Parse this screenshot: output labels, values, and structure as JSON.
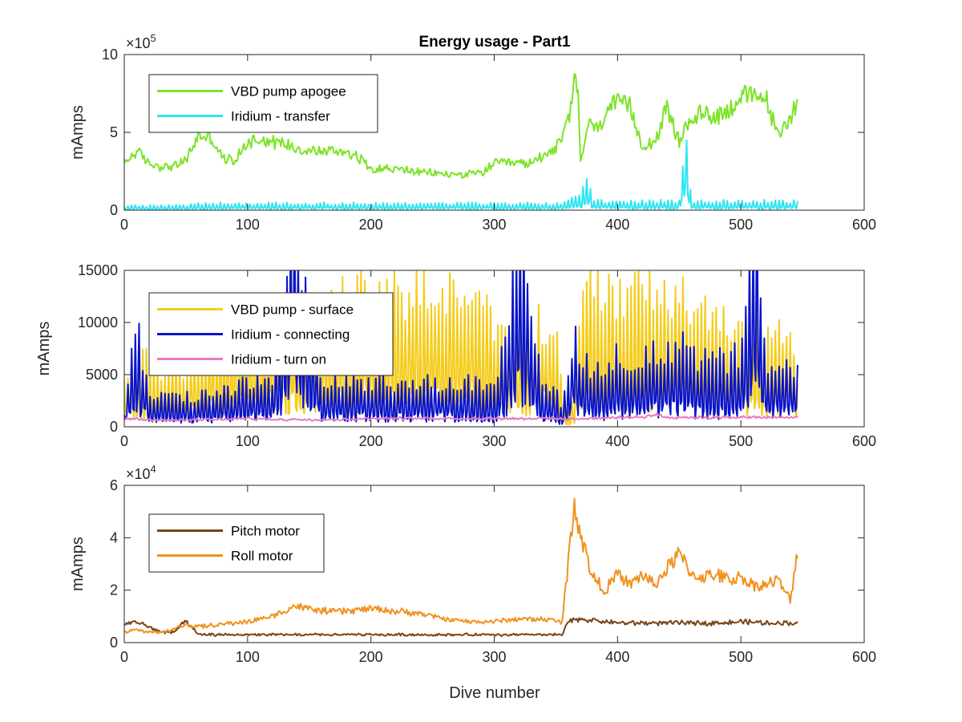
{
  "figure": {
    "title": "Energy usage - Part1",
    "xlabel": "Dive number"
  },
  "chart_data": [
    {
      "type": "line",
      "title": "Energy usage - Part1",
      "xlabel": "",
      "ylabel": "mAmps",
      "xlim": [
        0,
        600
      ],
      "ylim": [
        0,
        1000000
      ],
      "xticks": [
        0,
        100,
        200,
        300,
        400,
        500,
        600
      ],
      "yticks": [
        0,
        500000,
        1000000
      ],
      "ytick_labels": [
        "0",
        "5",
        "10"
      ],
      "y_exponent_label": "×10",
      "y_exponent_power": "5",
      "grid": false,
      "legend_position": "top-left",
      "series": [
        {
          "name": "VBD pump apogee",
          "color": "#7de32a",
          "style": "noisy",
          "x": [
            0,
            10,
            20,
            30,
            40,
            50,
            60,
            70,
            80,
            90,
            100,
            110,
            120,
            130,
            140,
            150,
            160,
            170,
            180,
            190,
            200,
            210,
            220,
            230,
            240,
            250,
            260,
            270,
            280,
            290,
            300,
            310,
            320,
            330,
            340,
            350,
            355,
            360,
            365,
            368,
            370,
            375,
            380,
            385,
            390,
            400,
            410,
            420,
            430,
            440,
            450,
            460,
            470,
            480,
            490,
            500,
            510,
            520,
            530,
            540,
            546
          ],
          "y": [
            300000,
            380000,
            300000,
            280000,
            280000,
            320000,
            480000,
            470000,
            330000,
            320000,
            440000,
            460000,
            440000,
            430000,
            400000,
            380000,
            380000,
            380000,
            380000,
            340000,
            270000,
            270000,
            260000,
            260000,
            240000,
            240000,
            230000,
            230000,
            230000,
            240000,
            300000,
            300000,
            300000,
            300000,
            360000,
            400000,
            450000,
            580000,
            800000,
            780000,
            300000,
            520000,
            560000,
            500000,
            650000,
            680000,
            660000,
            420000,
            440000,
            650000,
            440000,
            600000,
            620000,
            610000,
            640000,
            740000,
            720000,
            730000,
            470000,
            600000,
            700000
          ]
        },
        {
          "name": "Iridium - transfer",
          "color": "#2ee5f2",
          "style": "spiky",
          "x": [
            0,
            10,
            20,
            30,
            40,
            50,
            60,
            70,
            80,
            90,
            100,
            110,
            120,
            130,
            140,
            150,
            160,
            170,
            180,
            190,
            200,
            210,
            220,
            230,
            240,
            250,
            260,
            270,
            280,
            290,
            300,
            310,
            320,
            330,
            340,
            350,
            360,
            365,
            370,
            375,
            380,
            390,
            400,
            410,
            420,
            430,
            440,
            450,
            455,
            460,
            470,
            480,
            490,
            500,
            510,
            520,
            530,
            540,
            546
          ],
          "y": [
            20000,
            20000,
            20000,
            20000,
            20000,
            20000,
            30000,
            30000,
            30000,
            30000,
            30000,
            30000,
            30000,
            30000,
            30000,
            30000,
            30000,
            30000,
            30000,
            30000,
            30000,
            30000,
            30000,
            30000,
            30000,
            30000,
            30000,
            30000,
            30000,
            30000,
            30000,
            30000,
            30000,
            30000,
            30000,
            30000,
            40000,
            80000,
            60000,
            160000,
            50000,
            40000,
            40000,
            40000,
            40000,
            40000,
            40000,
            40000,
            360000,
            40000,
            40000,
            40000,
            40000,
            40000,
            40000,
            40000,
            40000,
            40000,
            40000
          ]
        }
      ]
    },
    {
      "type": "line",
      "title": "",
      "xlabel": "",
      "ylabel": "mAmps",
      "xlim": [
        0,
        600
      ],
      "ylim": [
        0,
        15000
      ],
      "xticks": [
        0,
        100,
        200,
        300,
        400,
        500,
        600
      ],
      "yticks": [
        0,
        5000,
        10000,
        15000
      ],
      "ytick_labels": [
        "0",
        "5000",
        "10000",
        "15000"
      ],
      "grid": false,
      "legend_position": "top-left",
      "series": [
        {
          "name": "VBD pump - surface",
          "color": "#f4cc1c",
          "style": "spiky",
          "x": [
            0,
            10,
            20,
            30,
            40,
            50,
            60,
            80,
            100,
            120,
            140,
            160,
            180,
            200,
            220,
            240,
            260,
            280,
            300,
            320,
            340,
            350,
            355,
            360,
            365,
            370,
            375,
            380,
            390,
            400,
            410,
            420,
            430,
            440,
            450,
            460,
            470,
            480,
            490,
            500,
            510,
            520,
            530,
            540,
            546
          ],
          "y": [
            3000,
            5000,
            4500,
            4000,
            4000,
            4000,
            5000,
            6000,
            7000,
            7500,
            8000,
            8500,
            9000,
            9000,
            9000,
            9000,
            9000,
            9000,
            7000,
            7000,
            7000,
            7000,
            2000,
            1000,
            2000,
            9500,
            9000,
            9500,
            8500,
            9000,
            9000,
            9500,
            8500,
            8500,
            9500,
            8000,
            7500,
            7500,
            7500,
            7000,
            7000,
            7000,
            7000,
            7000,
            3000
          ]
        },
        {
          "name": "Iridium - connecting",
          "color": "#0a14c8",
          "style": "spiky",
          "x": [
            0,
            10,
            20,
            30,
            40,
            50,
            60,
            80,
            100,
            120,
            138,
            160,
            180,
            200,
            220,
            240,
            260,
            280,
            300,
            322,
            340,
            350,
            355,
            360,
            365,
            370,
            380,
            390,
            400,
            410,
            420,
            430,
            440,
            450,
            460,
            470,
            480,
            490,
            500,
            513,
            520,
            530,
            540,
            546
          ],
          "y": [
            1000,
            7000,
            2000,
            2000,
            2000,
            2000,
            2000,
            2500,
            3000,
            3000,
            13500,
            3000,
            3000,
            3000,
            3000,
            3000,
            3000,
            3000,
            2500,
            12500,
            2500,
            2500,
            1000,
            4000,
            7000,
            5000,
            4000,
            4000,
            5000,
            4500,
            4500,
            5000,
            5000,
            5500,
            5000,
            4500,
            4500,
            4500,
            5000,
            14500,
            4500,
            4500,
            5000,
            3500
          ]
        },
        {
          "name": "Iridium - turn on",
          "color": "#e87bbf",
          "style": "noisy",
          "x": [
            0,
            20,
            40,
            60,
            80,
            100,
            120,
            140,
            160,
            180,
            200,
            220,
            240,
            260,
            280,
            300,
            320,
            340,
            350,
            360,
            370,
            380,
            400,
            420,
            430,
            440,
            460,
            480,
            500,
            520,
            540,
            546
          ],
          "y": [
            800,
            700,
            600,
            700,
            700,
            800,
            700,
            700,
            700,
            700,
            800,
            800,
            800,
            800,
            800,
            800,
            800,
            800,
            800,
            700,
            800,
            800,
            900,
            900,
            1200,
            900,
            900,
            900,
            900,
            900,
            900,
            900
          ]
        }
      ]
    },
    {
      "type": "line",
      "title": "",
      "xlabel": "Dive number",
      "ylabel": "mAmps",
      "xlim": [
        0,
        600
      ],
      "ylim": [
        0,
        60000
      ],
      "xticks": [
        0,
        100,
        200,
        300,
        400,
        500,
        600
      ],
      "yticks": [
        0,
        20000,
        40000,
        60000
      ],
      "ytick_labels": [
        "0",
        "2",
        "4",
        "6"
      ],
      "y_exponent_label": "×10",
      "y_exponent_power": "4",
      "grid": false,
      "legend_position": "top-left",
      "series": [
        {
          "name": "Pitch motor",
          "color": "#7a4313",
          "style": "noisy",
          "x": [
            0,
            10,
            20,
            30,
            40,
            50,
            60,
            80,
            100,
            120,
            140,
            160,
            180,
            200,
            220,
            240,
            260,
            280,
            300,
            320,
            340,
            355,
            360,
            370,
            380,
            390,
            400,
            420,
            440,
            460,
            480,
            500,
            520,
            540,
            546
          ],
          "y": [
            7000,
            8000,
            6000,
            4000,
            4000,
            8000,
            3000,
            3000,
            3000,
            3000,
            3000,
            3000,
            3000,
            3000,
            3000,
            3000,
            3000,
            3000,
            3000,
            3000,
            3000,
            3000,
            8000,
            9000,
            8500,
            8000,
            7500,
            7500,
            7500,
            7500,
            7500,
            8000,
            7500,
            7500,
            7500
          ]
        },
        {
          "name": "Roll motor",
          "color": "#f0921e",
          "style": "noisy",
          "x": [
            0,
            10,
            20,
            30,
            40,
            50,
            60,
            80,
            100,
            120,
            138,
            160,
            180,
            200,
            220,
            240,
            260,
            280,
            300,
            320,
            340,
            355,
            360,
            365,
            368,
            372,
            380,
            390,
            400,
            410,
            420,
            430,
            440,
            450,
            460,
            470,
            480,
            490,
            500,
            510,
            520,
            530,
            540,
            546
          ],
          "y": [
            4000,
            5000,
            4000,
            4000,
            5000,
            7000,
            6000,
            7000,
            8000,
            10000,
            14000,
            12000,
            12000,
            13000,
            12000,
            11000,
            9000,
            8000,
            8000,
            9000,
            9000,
            8000,
            30000,
            55000,
            45000,
            38000,
            25000,
            20000,
            26000,
            22000,
            26000,
            22000,
            28000,
            34000,
            26000,
            25000,
            26000,
            24000,
            25000,
            22000,
            22000,
            24000,
            16000,
            35000
          ]
        }
      ]
    }
  ]
}
